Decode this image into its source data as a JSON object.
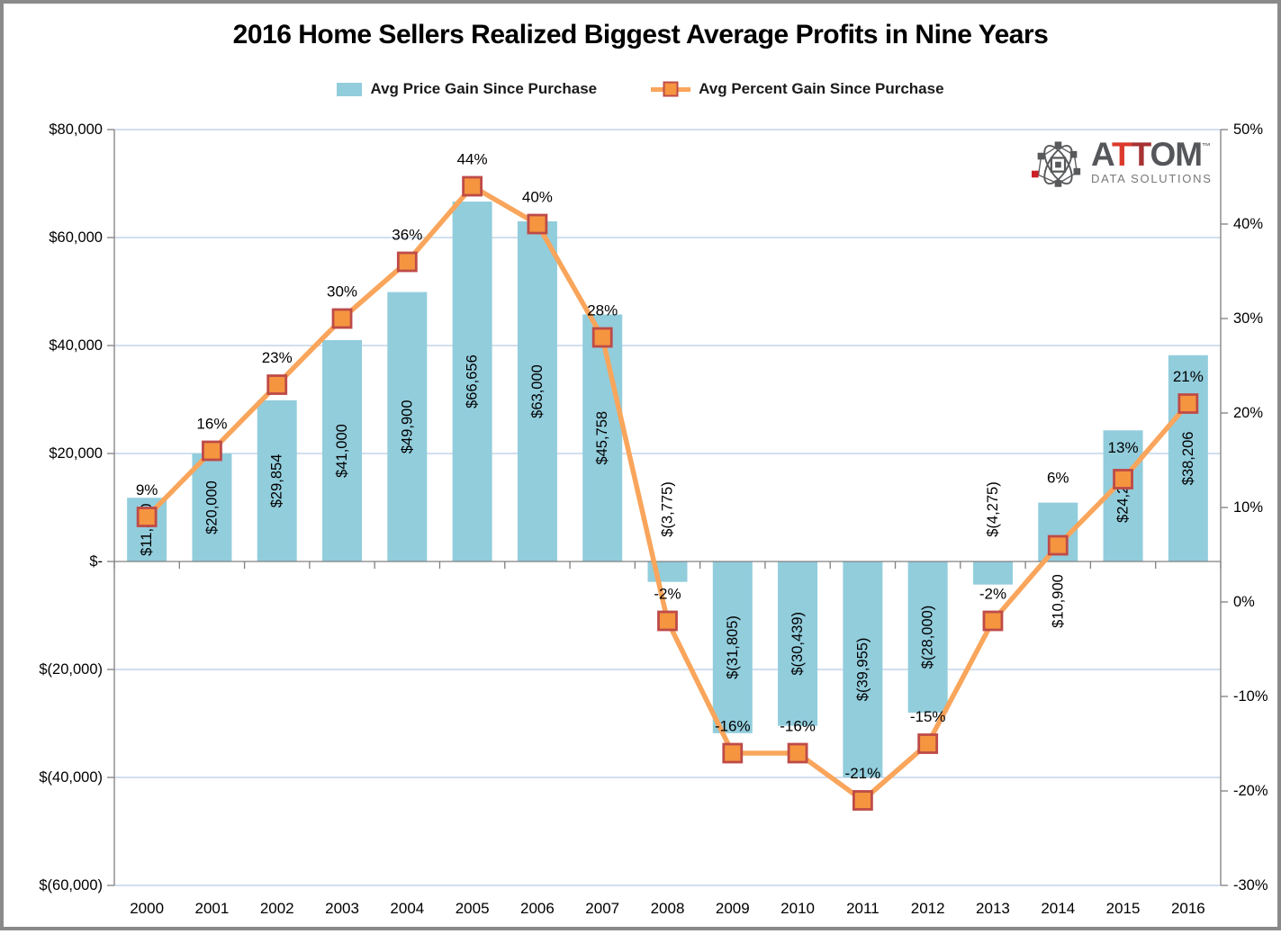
{
  "chart_data": {
    "type": "combo",
    "title": "2016 Home Sellers Realized Biggest Average Profits in Nine Years",
    "legend_position": "top",
    "grid": true,
    "categories": [
      "2000",
      "2001",
      "2002",
      "2003",
      "2004",
      "2005",
      "2006",
      "2007",
      "2008",
      "2009",
      "2010",
      "2011",
      "2012",
      "2013",
      "2014",
      "2015",
      "2016"
    ],
    "series": [
      {
        "name": "Avg Price Gain Since Purchase",
        "type": "bar",
        "axis": "left",
        "color": "#92CDDC",
        "values": [
          11800,
          20000,
          29854,
          41000,
          49900,
          66656,
          63000,
          45758,
          -3775,
          -31805,
          -30439,
          -39955,
          -28000,
          -4275,
          10900,
          24288,
          38206
        ],
        "labels": [
          "$11,800",
          "$20,000",
          "$29,854",
          "$41,000",
          "$49,900",
          "$66,656",
          "$63,000",
          "$45,758",
          "$(3,775)",
          "$(31,805)",
          "$(30,439)",
          "$(39,955)",
          "$(28,000)",
          "$(4,275)",
          "$10,900",
          "$24,288",
          "$38,206"
        ],
        "label_positions": [
          "center",
          "center",
          "center",
          "center",
          "center",
          "center",
          "center",
          "center",
          "above_axis",
          "center",
          "center",
          "center",
          "center",
          "above_axis",
          "below_axis",
          "center",
          "center"
        ]
      },
      {
        "name": "Avg Percent Gain Since Purchase",
        "type": "line",
        "axis": "right",
        "color": "#F9A55B",
        "marker": "square",
        "marker_fill": "#F5953F",
        "marker_border": "#BE4B48",
        "values": [
          9,
          16,
          23,
          30,
          36,
          44,
          40,
          28,
          -2,
          -16,
          -16,
          -21,
          -15,
          -2,
          6,
          13,
          21
        ],
        "labels": [
          "9%",
          "16%",
          "23%",
          "30%",
          "36%",
          "44%",
          "40%",
          "28%",
          "-2%",
          "-16%",
          "-16%",
          "-21%",
          "-15%",
          "-2%",
          "6%",
          "13%",
          "21%"
        ],
        "label_dy": [
          -30,
          -30,
          -30,
          -30,
          -30,
          -30,
          -30,
          -30,
          -30,
          -30,
          -30,
          -30,
          -30,
          -30,
          -75,
          -35,
          -30
        ]
      }
    ],
    "left_axis": {
      "tick_labels": [
        "$80,000",
        "$60,000",
        "$40,000",
        "$20,000",
        "$-",
        "$(20,000)",
        "$(40,000)",
        "$(60,000)"
      ],
      "tick_values": [
        80000,
        60000,
        40000,
        20000,
        0,
        -20000,
        -40000,
        -60000
      ],
      "range": [
        -60000,
        80000
      ]
    },
    "right_axis": {
      "tick_labels": [
        "50%",
        "40%",
        "30%",
        "20%",
        "10%",
        "0%",
        "-10%",
        "-20%",
        "-30%"
      ],
      "tick_values": [
        50,
        40,
        30,
        20,
        10,
        0,
        -10,
        -20,
        -30
      ],
      "range": [
        -30,
        50
      ]
    }
  },
  "colors": {
    "bar": "#92CDDC",
    "line": "#F9A55B",
    "marker_fill": "#F5953F",
    "marker_border": "#BE4B48",
    "gridline": "#B8CCE4",
    "axis": "#808080",
    "frame_border": "#8A8A8A",
    "logo_gray": "#55565A",
    "logo_red_1": "#DC3A2C",
    "logo_red_2": "#A63234",
    "logo_sub_gray": "#77787B"
  },
  "logo": {
    "a": "A",
    "t1": "T",
    "t2": "T",
    "om": "OM",
    "tm": "™",
    "sub": "DATA SOLUTIONS"
  }
}
